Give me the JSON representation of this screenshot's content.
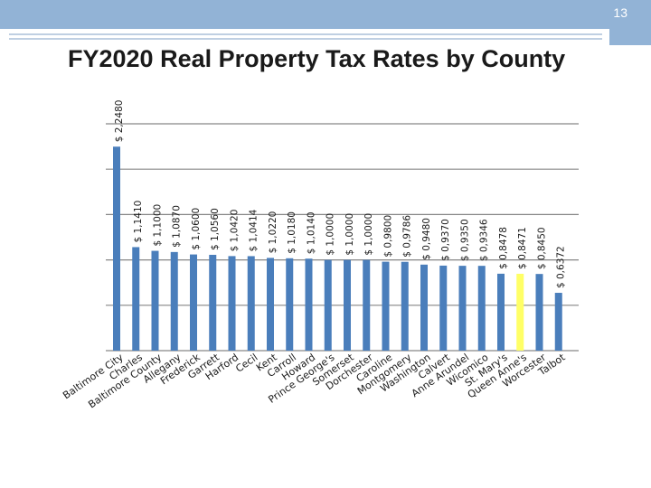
{
  "slide": {
    "number": "13",
    "colors": {
      "header_band": "#92b3d6",
      "header_line": "#7f9fc6",
      "bar": "#4a7ebb",
      "highlight": "#ffff66",
      "grid": "#868686"
    }
  },
  "chart_data": {
    "type": "bar",
    "title": "FY2020 Real Property Tax Rates by County",
    "xlabel": "",
    "ylabel": "",
    "ylim": [
      0,
      2.5
    ],
    "grid": true,
    "highlight_index": 21,
    "categories": [
      "Baltimore City",
      "Charles",
      "Baltimore County",
      "Allegany",
      "Frederick",
      "Garrett",
      "Harford",
      "Cecil",
      "Kent",
      "Carroll",
      "Howard",
      "Prince George's",
      "Somerset",
      "Dorchester",
      "Caroline",
      "Montgomery",
      "Washington",
      "Calvert",
      "Anne Arundel",
      "Wicomico",
      "St. Mary's",
      "Queen Anne's",
      "Worcester",
      "Talbot"
    ],
    "values": [
      2.248,
      1.141,
      1.1,
      1.087,
      1.06,
      1.056,
      1.042,
      1.0414,
      1.022,
      1.018,
      1.014,
      1.0,
      1.0,
      1.0,
      0.98,
      0.9786,
      0.948,
      0.937,
      0.935,
      0.9346,
      0.8478,
      0.8471,
      0.845,
      0.6372
    ],
    "data_labels": [
      "$ 2,2480",
      "$ 1,1410",
      "$ 1,1000",
      "$ 1,0870",
      "$ 1,0600",
      "$ 1,0560",
      "$ 1,0420",
      "$ 1,0414",
      "$ 1,0220",
      "$ 1,0180",
      "$ 1,0140",
      "$ 1,0000",
      "$ 1,0000",
      "$ 1,0000",
      "$ 0,9800",
      "$ 0,9786",
      "$ 0,9480",
      "$ 0,9370",
      "$ 0,9350",
      "$ 0,9346",
      "$ 0,8478",
      "$ 0,8471",
      "$ 0,8450",
      "$ 0,6372"
    ]
  }
}
